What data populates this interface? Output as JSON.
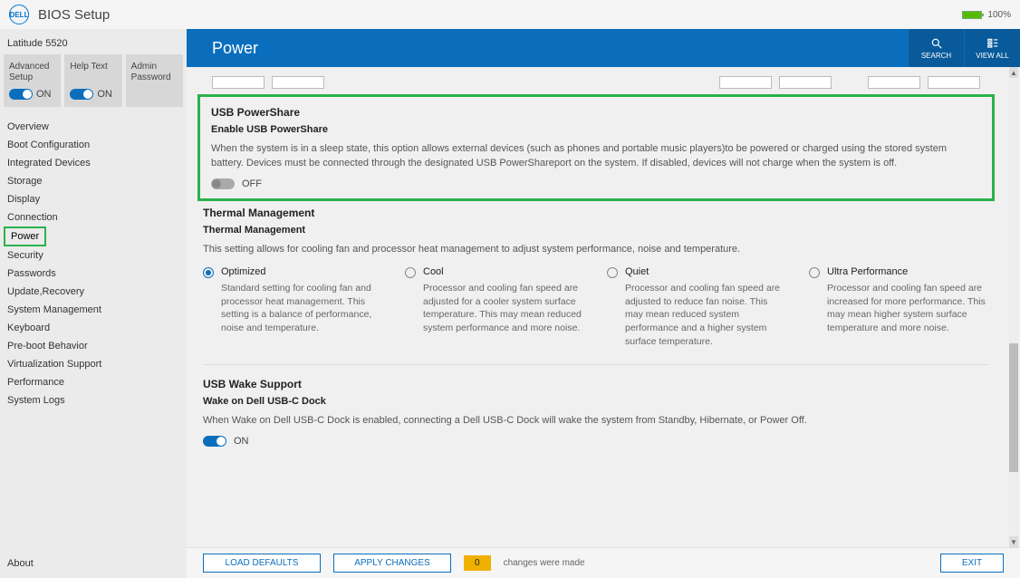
{
  "app_title": "BIOS Setup",
  "battery": {
    "pct": "100%",
    "fill_width": "100%"
  },
  "model": "Latitude 5520",
  "top_cards": [
    {
      "title": "Advanced Setup",
      "toggle": true,
      "label": "ON"
    },
    {
      "title": "Help Text",
      "toggle": true,
      "label": "ON"
    },
    {
      "title": "Admin Password",
      "toggle": null
    }
  ],
  "nav": {
    "items": [
      "Overview",
      "Boot Configuration",
      "Integrated Devices",
      "Storage",
      "Display",
      "Connection",
      "Power",
      "Security",
      "Passwords",
      "Update,Recovery",
      "System Management",
      "Keyboard",
      "Pre-boot Behavior",
      "Virtualization Support",
      "Performance",
      "System Logs"
    ],
    "active_index": 6
  },
  "about": "About",
  "page_title": "Power",
  "header_actions": {
    "search": "SEARCH",
    "view_all": "VIEW ALL"
  },
  "powershare": {
    "title": "USB PowerShare",
    "sub": "Enable USB PowerShare",
    "desc": "When the system is in a sleep state, this option allows external devices (such as phones and portable music players)to be powered or charged using the stored system battery. Devices must be connected through the designated USB PowerShareport on the system. If disabled, devices will not charge when the system is off.",
    "toggle": false,
    "toggle_label": "OFF"
  },
  "thermal": {
    "title": "Thermal Management",
    "sub": "Thermal Management",
    "desc": "This setting allows for cooling fan and processor heat management to adjust system performance, noise and temperature.",
    "options": [
      {
        "label": "Optimized",
        "desc": "Standard setting for cooling fan and processor heat management. This setting is a balance of performance, noise and temperature.",
        "selected": true
      },
      {
        "label": "Cool",
        "desc": "Processor and cooling fan speed are adjusted for a cooler system surface temperature. This may mean reduced system performance and more noise.",
        "selected": false
      },
      {
        "label": "Quiet",
        "desc": "Processor and cooling fan speed are adjusted to reduce fan noise. This may mean reduced system performance and a higher system surface temperature.",
        "selected": false
      },
      {
        "label": "Ultra Performance",
        "desc": "Processor and cooling fan speed are increased for more performance. This may mean higher system surface temperature and more noise.",
        "selected": false
      }
    ]
  },
  "usb_wake": {
    "title": "USB Wake Support",
    "sub": "Wake on Dell USB-C Dock",
    "desc": "When Wake on Dell USB-C Dock is enabled, connecting a Dell USB-C Dock will wake the system from Standby, Hibernate, or Power Off.",
    "toggle": true,
    "toggle_label": "ON"
  },
  "footer": {
    "load_defaults": "LOAD DEFAULTS",
    "apply": "APPLY CHANGES",
    "changes_count": "0",
    "changes_text": "changes were made",
    "exit": "EXIT"
  },
  "scrollbar": {
    "thumb_top": "58%",
    "thumb_height": "28%"
  },
  "colors": {
    "accent": "#0a6ebd",
    "highlight": "#2bb24c"
  }
}
